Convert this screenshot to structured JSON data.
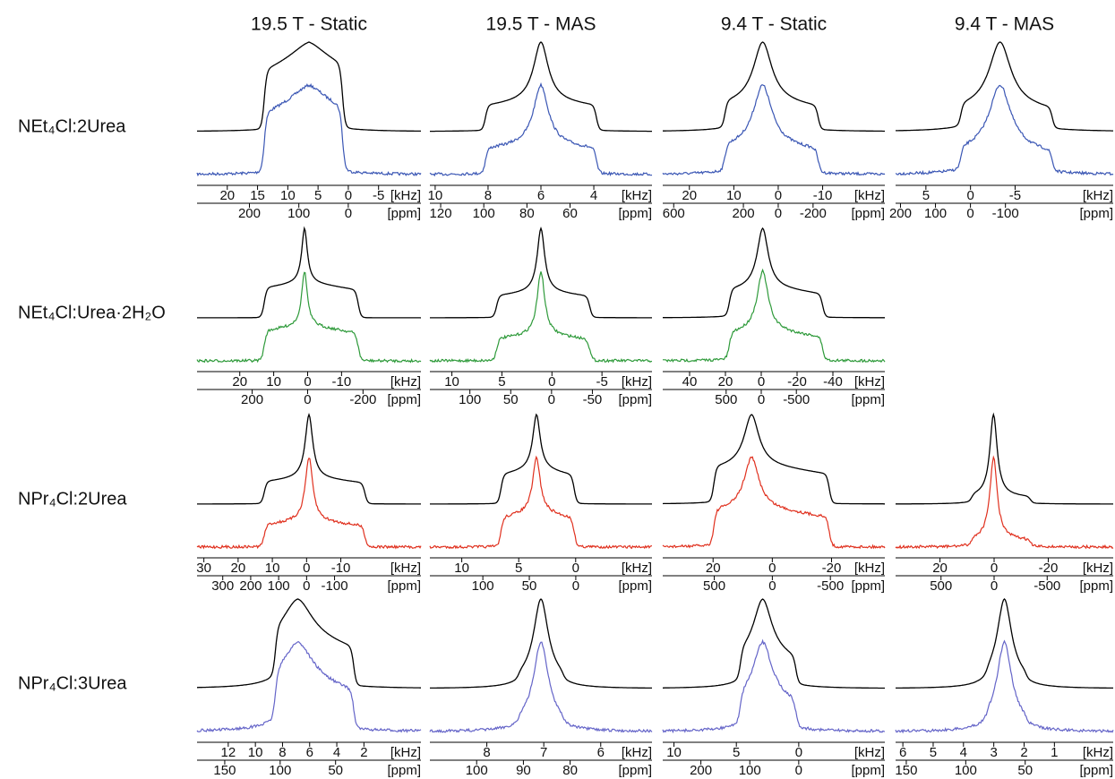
{
  "column_titles": [
    "19.5 T - Static",
    "19.5 T - MAS",
    "9.4 T - Static",
    "9.4 T - MAS"
  ],
  "rows": [
    {
      "label": "NEt₄Cl:2Urea",
      "color": "#3a56b4",
      "panels": [
        {
          "khz": {
            "lim": [
              25,
              -12
            ],
            "ticks": [
              20,
              15,
              10,
              5,
              0,
              -5
            ],
            "unit": "[kHz]"
          },
          "ppm": {
            "lim": [
              306,
              -147
            ],
            "ticks": [
              200,
              100,
              0
            ],
            "unit": "[ppm]"
          }
        },
        {
          "khz": {
            "lim": [
              10.2,
              1.8
            ],
            "ticks": [
              10,
              8,
              6,
              4
            ],
            "unit": "[kHz]"
          },
          "ppm": {
            "lim": [
              125,
              22
            ],
            "ticks": [
              120,
              100,
              80,
              60
            ],
            "unit": "[ppm]"
          }
        },
        {
          "khz": {
            "lim": [
              26,
              -24
            ],
            "ticks": [
              20,
              10,
              0,
              -10
            ],
            "unit": "[kHz]"
          },
          "ppm": {
            "lim": [
              663,
              -612
            ],
            "ticks": [
              600,
              200,
              0,
              -200
            ],
            "unit": "[ppm]"
          }
        },
        {
          "khz": {
            "lim": [
              8.4,
              -16
            ],
            "ticks": [
              5,
              0,
              -5
            ],
            "unit": "[kHz]"
          },
          "ppm": {
            "lim": [
              214,
              -408
            ],
            "ticks": [
              200,
              100,
              0,
              -100
            ],
            "unit": "[ppm]"
          }
        }
      ]
    },
    {
      "label": "NEt₄Cl:Urea·2H₂O",
      "color": "#2e9a3a",
      "panels": [
        {
          "khz": {
            "lim": [
              32.6,
              -33.4
            ],
            "ticks": [
              20,
              10,
              0,
              -10
            ],
            "unit": "[kHz]"
          },
          "ppm": {
            "lim": [
              399,
              -409
            ],
            "ticks": [
              200,
              0,
              -200
            ],
            "unit": "[ppm]"
          }
        },
        {
          "khz": {
            "lim": [
              12.2,
              -10
            ],
            "ticks": [
              10,
              5,
              0,
              -5
            ],
            "unit": "[kHz]"
          },
          "ppm": {
            "lim": [
              149,
              -123
            ],
            "ticks": [
              100,
              50,
              0,
              -50
            ],
            "unit": "[ppm]"
          }
        },
        {
          "khz": {
            "lim": [
              55,
              -69
            ],
            "ticks": [
              40,
              20,
              0,
              -20,
              -40
            ],
            "unit": "[kHz]"
          },
          "ppm": {
            "lim": [
              1403,
              -1760
            ],
            "ticks": [
              500,
              0,
              -500
            ],
            "unit": "[ppm]"
          }
        },
        null
      ]
    },
    {
      "label": "NPr₄Cl:2Urea",
      "color": "#e0301e",
      "panels": [
        {
          "khz": {
            "lim": [
              32,
              -33.4
            ],
            "ticks": [
              30,
              20,
              10,
              0,
              -10
            ],
            "unit": "[kHz]"
          },
          "ppm": {
            "lim": [
              392,
              -409
            ],
            "ticks": [
              300,
              200,
              100,
              0,
              -100
            ],
            "unit": "[ppm]"
          }
        },
        {
          "khz": {
            "lim": [
              12.8,
              -6.7
            ],
            "ticks": [
              10,
              5,
              0
            ],
            "unit": "[kHz]"
          },
          "ppm": {
            "lim": [
              157,
              -82
            ],
            "ticks": [
              100,
              50,
              0
            ],
            "unit": "[ppm]"
          }
        },
        {
          "khz": {
            "lim": [
              37,
              -38
            ],
            "ticks": [
              20,
              0,
              -20
            ],
            "unit": "[kHz]"
          },
          "ppm": {
            "lim": [
              944,
              -969
            ],
            "ticks": [
              500,
              0,
              -500
            ],
            "unit": "[ppm]"
          }
        },
        {
          "khz": {
            "lim": [
              36.4,
              -44
            ],
            "ticks": [
              20,
              0,
              -20
            ],
            "unit": "[kHz]"
          },
          "ppm": {
            "lim": [
              928,
              -1122
            ],
            "ticks": [
              500,
              0,
              -500
            ],
            "unit": "[ppm]"
          }
        }
      ]
    },
    {
      "label": "NPr₄Cl:3Urea",
      "color": "#6464c8",
      "panels": [
        {
          "khz": {
            "lim": [
              14.3,
              -2.2
            ],
            "ticks": [
              12,
              10,
              8,
              6,
              4,
              2
            ],
            "unit": "[kHz]"
          },
          "ppm": {
            "lim": [
              175,
              -27
            ],
            "ticks": [
              150,
              100,
              50
            ],
            "unit": "[ppm]"
          }
        },
        {
          "khz": {
            "lim": [
              9,
              5.1
            ],
            "ticks": [
              8,
              7,
              6
            ],
            "unit": "[kHz]"
          },
          "ppm": {
            "lim": [
              110,
              62.5
            ],
            "ticks": [
              100,
              90,
              80
            ],
            "unit": "[ppm]"
          }
        },
        {
          "khz": {
            "lim": [
              10.9,
              -6.9
            ],
            "ticks": [
              10,
              5,
              0
            ],
            "unit": "[kHz]"
          },
          "ppm": {
            "lim": [
              278,
              -176
            ],
            "ticks": [
              200,
              100,
              0
            ],
            "unit": "[ppm]"
          }
        },
        {
          "khz": {
            "lim": [
              6.24,
              -0.94
            ],
            "ticks": [
              6,
              5,
              4,
              3,
              2,
              1
            ],
            "unit": "[kHz]"
          },
          "ppm": {
            "lim": [
              159,
              -24
            ],
            "ticks": [
              150,
              100,
              50
            ],
            "unit": "[ppm]"
          }
        }
      ]
    }
  ]
}
